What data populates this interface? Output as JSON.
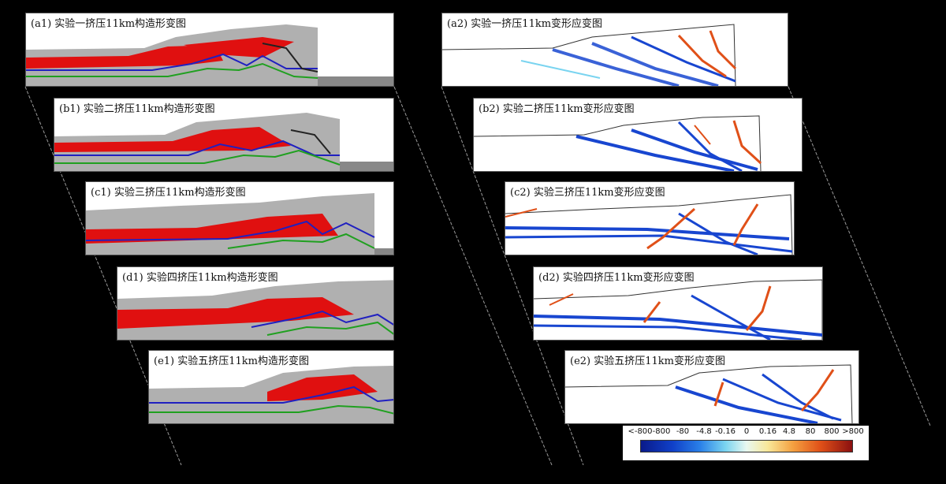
{
  "panels": {
    "a1": {
      "title": "(a1) 实验一挤压11km构造形变图"
    },
    "a2": {
      "title": "(a2) 实验一挤压11km变形应变图"
    },
    "b1": {
      "title": "(b1) 实验二挤压11km构造形变图"
    },
    "b2": {
      "title": "(b2) 实验二挤压11km变形应变图"
    },
    "c1": {
      "title": "(c1) 实验三挤压11km构造形变图"
    },
    "c2": {
      "title": "(c2) 实验三挤压11km变形应变图"
    },
    "d1": {
      "title": "(d1) 实验四挤压11km构造形变图"
    },
    "d2": {
      "title": "(d2) 实验四挤压11km变形应变图"
    },
    "e1": {
      "title": "(e1) 实验五挤压11km构造形变图"
    },
    "e2": {
      "title": "(e2) 实验五挤压11km变形应变图"
    }
  },
  "colorbar": {
    "ticks": [
      "<-800",
      "-800",
      "-80",
      "-4.8",
      "-0.16",
      "0",
      "0.16",
      "4.8",
      "80",
      "800",
      ">800"
    ],
    "colors": [
      "#0a1a8a",
      "#1040c8",
      "#2a80e8",
      "#7ad4f0",
      "#e8f8f0",
      "#f8e89a",
      "#f4a040",
      "#e05018",
      "#8a1010"
    ]
  }
}
